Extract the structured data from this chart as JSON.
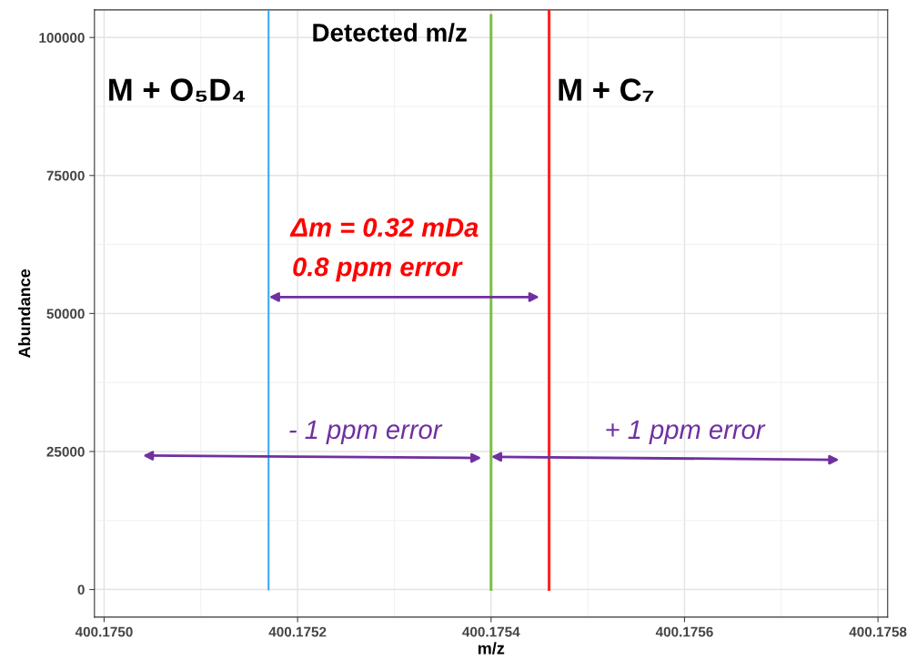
{
  "chart_data": {
    "type": "line",
    "xlabel": "m/z",
    "ylabel": "Abundance",
    "xlim": [
      400.17499,
      400.17581
    ],
    "ylim": [
      -5000,
      105000
    ],
    "xticks": [
      {
        "value": 400.175,
        "label": "400.1750"
      },
      {
        "value": 400.1752,
        "label": "400.1752"
      },
      {
        "value": 400.1754,
        "label": "400.1754"
      },
      {
        "value": 400.1756,
        "label": "400.1756"
      },
      {
        "value": 400.1758,
        "label": "400.1758"
      }
    ],
    "yticks": [
      0,
      25000,
      50000,
      75000,
      100000
    ],
    "grid": true,
    "marker": "none",
    "line_style": "solid",
    "series": [
      {
        "color": "#3fa9f5",
        "x": [
          400.17517,
          400.17517
        ],
        "values": [
          0,
          105000
        ]
      },
      {
        "color": "#7ac143",
        "x": [
          400.1754,
          400.1754
        ],
        "values": [
          0,
          104000
        ]
      },
      {
        "color": "#ff2020",
        "x": [
          400.17546,
          400.17546
        ],
        "values": [
          0,
          105000
        ]
      }
    ],
    "annotations": [
      "Detected m/z",
      "M + O₅D₄",
      "M + C₇",
      "Δm = 0.32 mDa",
      "0.8 ppm error",
      "- 1 ppm error",
      "+ 1 ppm error"
    ]
  }
}
